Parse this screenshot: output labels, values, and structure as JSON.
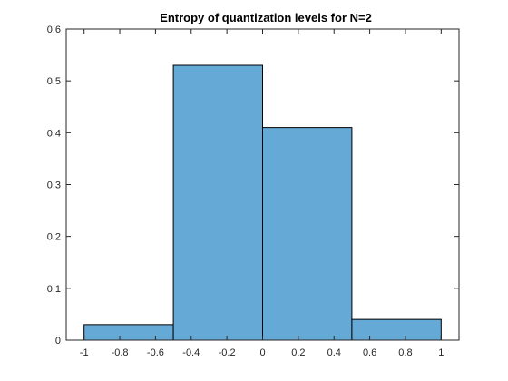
{
  "chart_data": {
    "type": "histogram",
    "title": "Entropy of quantization levels for N=2",
    "xlabel": "",
    "ylabel": "",
    "xlim": [
      -1.1,
      1.1
    ],
    "ylim": [
      0,
      0.6
    ],
    "bin_edges": [
      -1,
      -0.5,
      0,
      0.5,
      1
    ],
    "values": [
      0.03,
      0.53,
      0.41,
      0.04
    ],
    "x_ticks": [
      -1,
      -0.8,
      -0.6,
      -0.4,
      -0.2,
      0,
      0.2,
      0.4,
      0.6,
      0.8,
      1
    ],
    "x_tick_labels": [
      "-1",
      "-0.8",
      "-0.6",
      "-0.4",
      "-0.2",
      "0",
      "0.2",
      "0.4",
      "0.6",
      "0.8",
      "1"
    ],
    "y_ticks": [
      0,
      0.1,
      0.2,
      0.3,
      0.4,
      0.5,
      0.6
    ],
    "y_tick_labels": [
      "0",
      "0.1",
      "0.2",
      "0.3",
      "0.4",
      "0.5",
      "0.6"
    ],
    "grid": false,
    "legend": "none",
    "colors": {
      "bar_fill": "#65a9d7",
      "bar_edge": "#000000",
      "axes": "#262626"
    }
  }
}
